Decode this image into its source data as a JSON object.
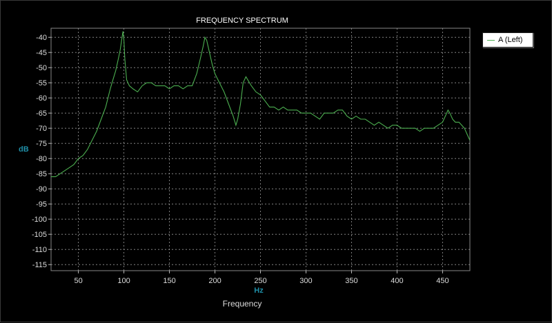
{
  "chart_data": {
    "type": "line",
    "title": "FREQUENCY SPECTRUM",
    "xlabel": "Frequency",
    "xunit": "Hz",
    "ylabel": "dB",
    "xlim": [
      20,
      480
    ],
    "ylim": [
      -117,
      -37
    ],
    "xticks": [
      50,
      100,
      150,
      200,
      250,
      300,
      350,
      400,
      450
    ],
    "yticks": [
      -40,
      -45,
      -50,
      -55,
      -60,
      -65,
      -70,
      -75,
      -80,
      -85,
      -90,
      -95,
      -100,
      -105,
      -110,
      -115
    ],
    "grid": true,
    "legend_position": "top-right",
    "series": [
      {
        "name": "A (Left)",
        "color": "#4caf50",
        "x": [
          20,
          25,
          30,
          35,
          40,
          45,
          50,
          55,
          60,
          65,
          70,
          75,
          80,
          85,
          88,
          91,
          94,
          96,
          98,
          99,
          100,
          101,
          103,
          106,
          110,
          115,
          120,
          125,
          130,
          135,
          140,
          145,
          150,
          155,
          160,
          165,
          170,
          175,
          180,
          184,
          187,
          189,
          191,
          194,
          197,
          200,
          205,
          210,
          215,
          220,
          223,
          225,
          228,
          231,
          234,
          236,
          240,
          245,
          250,
          255,
          260,
          265,
          270,
          275,
          280,
          285,
          290,
          295,
          300,
          305,
          310,
          315,
          320,
          325,
          330,
          335,
          340,
          345,
          350,
          355,
          360,
          365,
          370,
          375,
          380,
          385,
          390,
          395,
          400,
          405,
          410,
          415,
          420,
          425,
          430,
          435,
          440,
          445,
          450,
          453,
          456,
          458,
          461,
          464,
          468,
          471,
          474,
          477,
          480
        ],
        "y": [
          -86,
          -86,
          -85,
          -84,
          -83,
          -82,
          -80,
          -79,
          -77,
          -74,
          -71,
          -67,
          -63,
          -57,
          -54,
          -51,
          -47,
          -44,
          -40,
          -38,
          -41,
          -47,
          -54,
          -56,
          -57,
          -58,
          -56,
          -55,
          -55,
          -56,
          -56,
          -56,
          -57,
          -56,
          -56,
          -57,
          -56,
          -56,
          -52,
          -47,
          -43,
          -40,
          -41,
          -45,
          -49,
          -52,
          -55,
          -58,
          -62,
          -66,
          -69,
          -67,
          -62,
          -55,
          -53,
          -54,
          -56,
          -58,
          -59,
          -61,
          -63,
          -63,
          -64,
          -63,
          -64,
          -64,
          -64,
          -65,
          -65,
          -65,
          -66,
          -67,
          -65,
          -65,
          -65,
          -64,
          -64,
          -66,
          -67,
          -66,
          -67,
          -67,
          -68,
          -69,
          -68,
          -69,
          -70,
          -69,
          -69,
          -70,
          -70,
          -70,
          -70,
          -71,
          -70,
          -70,
          -70,
          -69,
          -68,
          -66,
          -64,
          -65,
          -67,
          -68,
          -68,
          -69,
          -70,
          -72,
          -74
        ]
      }
    ]
  }
}
